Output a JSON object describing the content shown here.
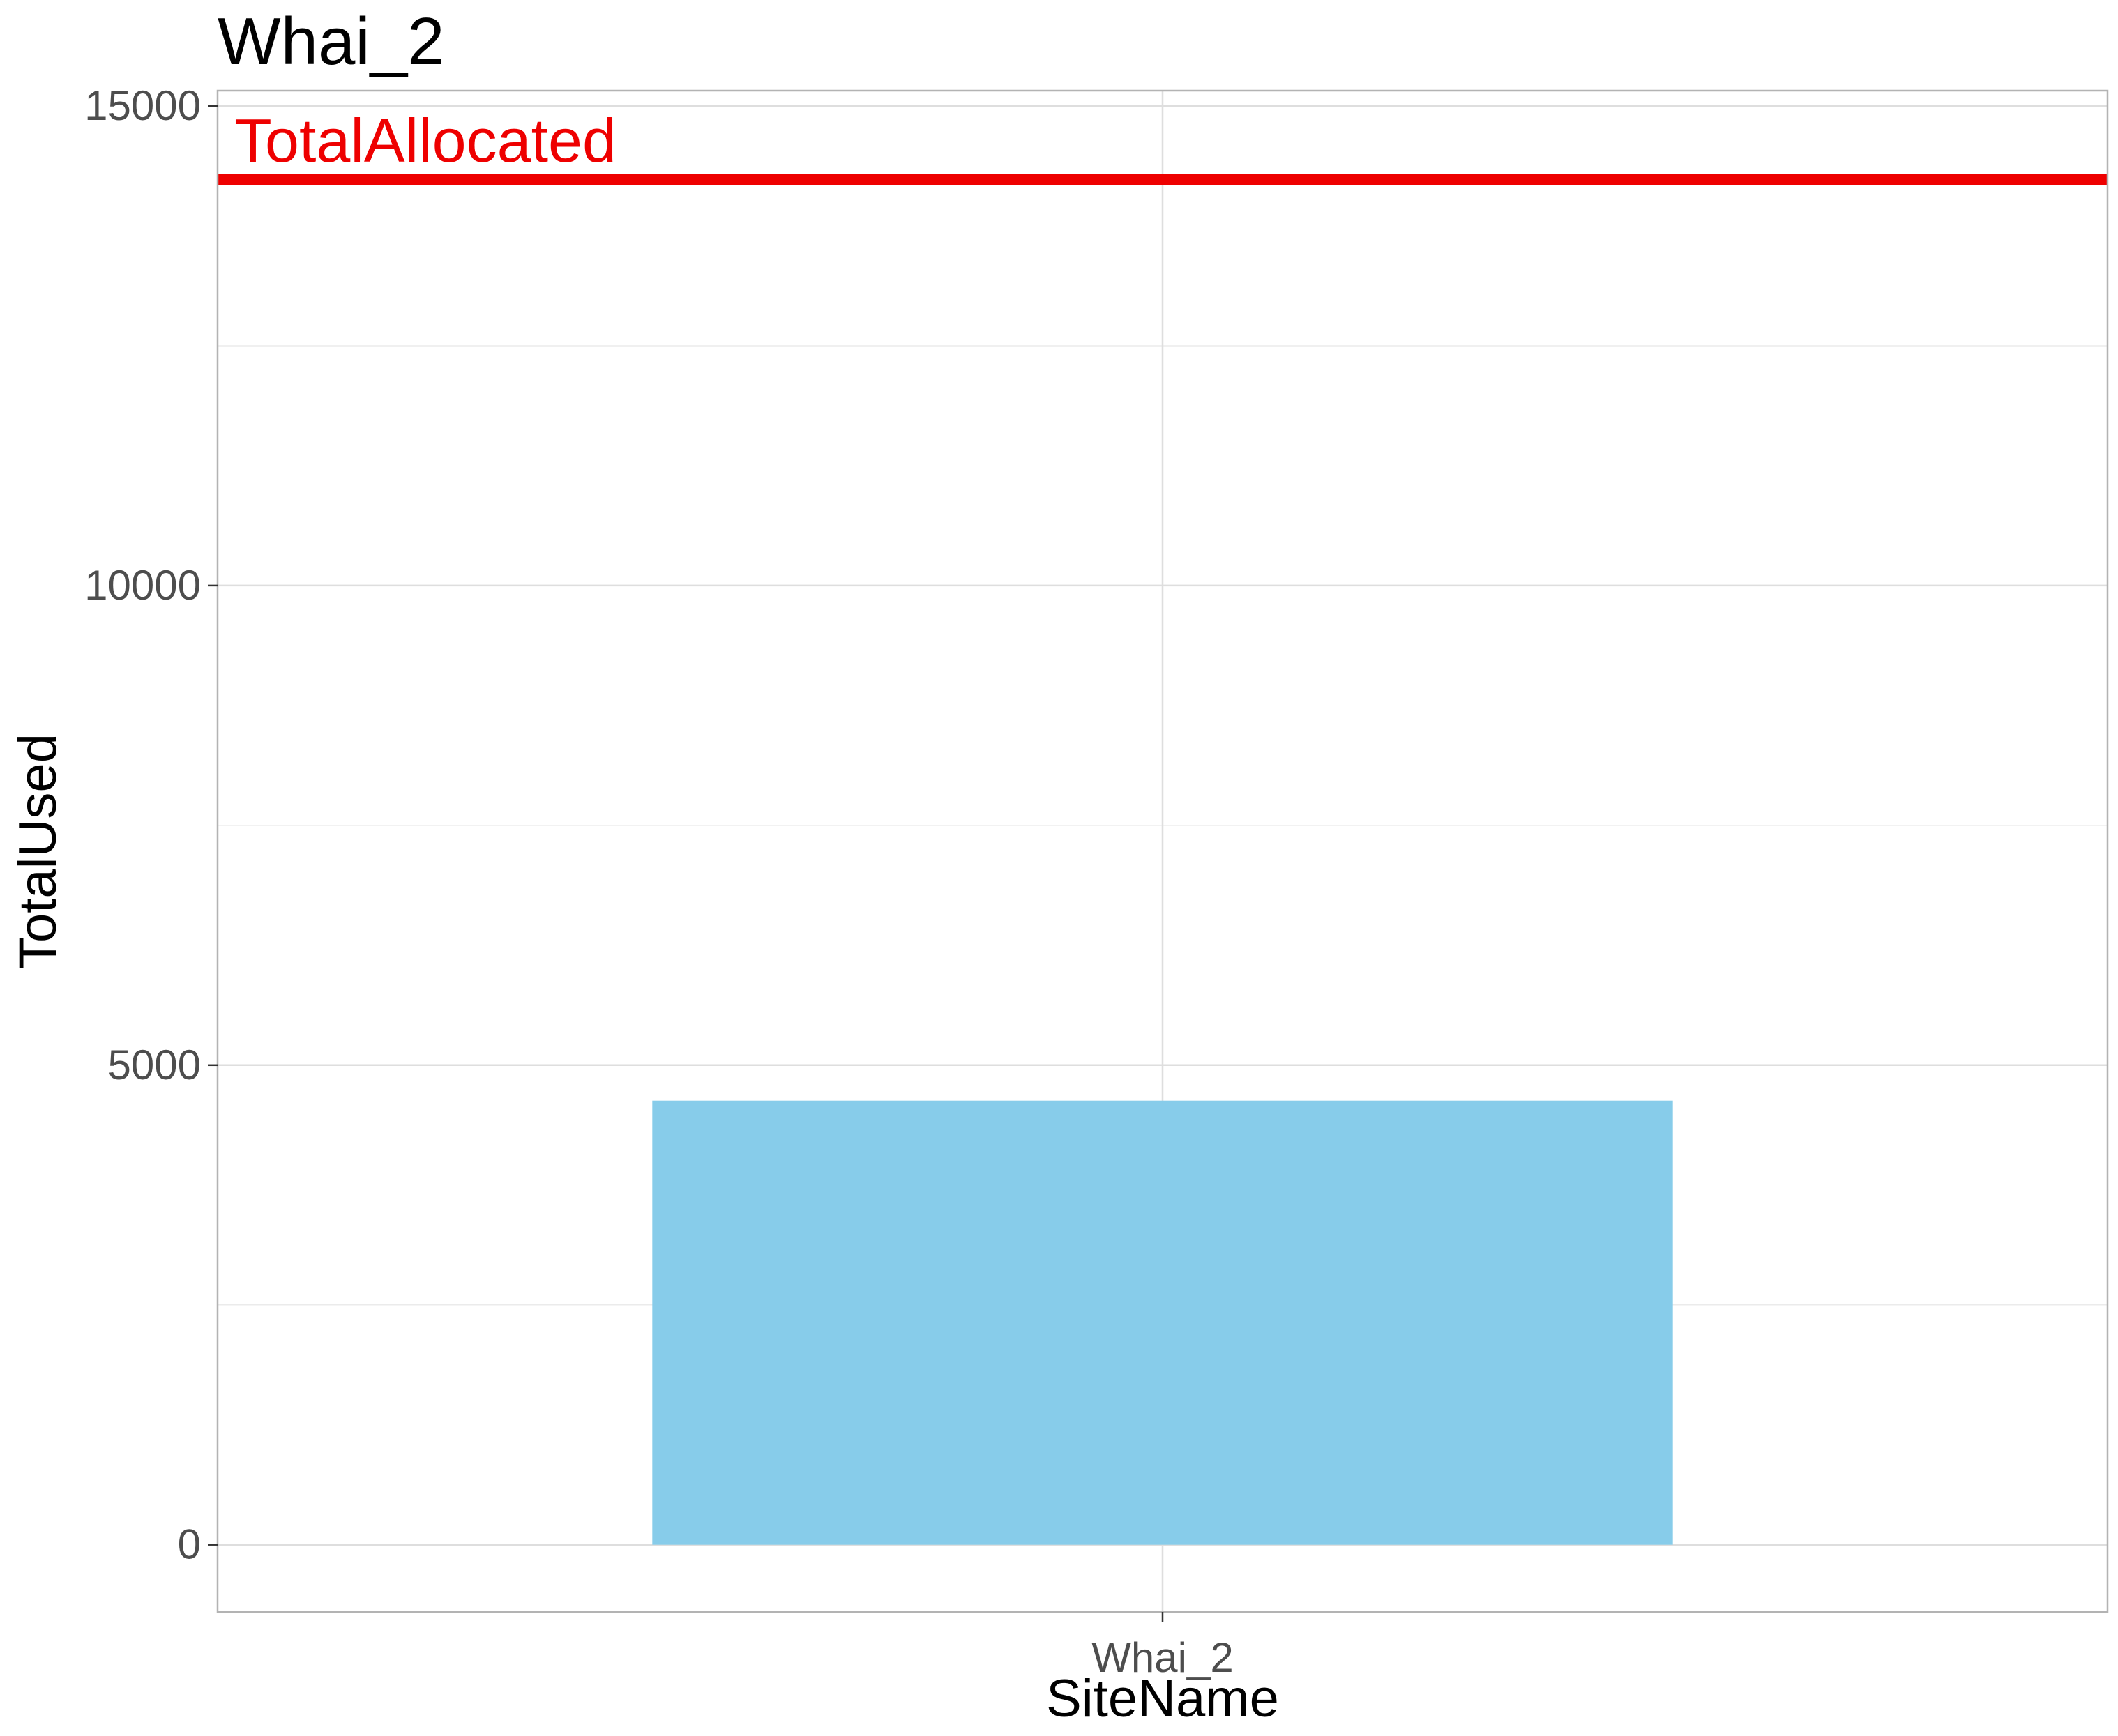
{
  "chart_data": {
    "type": "bar",
    "title": "Whai_2",
    "xlabel": "SiteName",
    "ylabel": "TotalUsed",
    "categories": [
      "Whai_2"
    ],
    "values": [
      4630
    ],
    "ylim": [
      -700,
      15160
    ],
    "y_ticks": [
      0,
      5000,
      10000,
      15000
    ],
    "y_tick_labels": [
      "0",
      "5000",
      "10000",
      "15000"
    ],
    "y_minor_gridlines": [
      2500,
      7500,
      12500
    ],
    "grid": true,
    "legend": "none",
    "bar_color": "#87CCEA",
    "reference_line": {
      "label": "TotalAllocated",
      "value": 14230,
      "color": "#EE0000"
    }
  }
}
